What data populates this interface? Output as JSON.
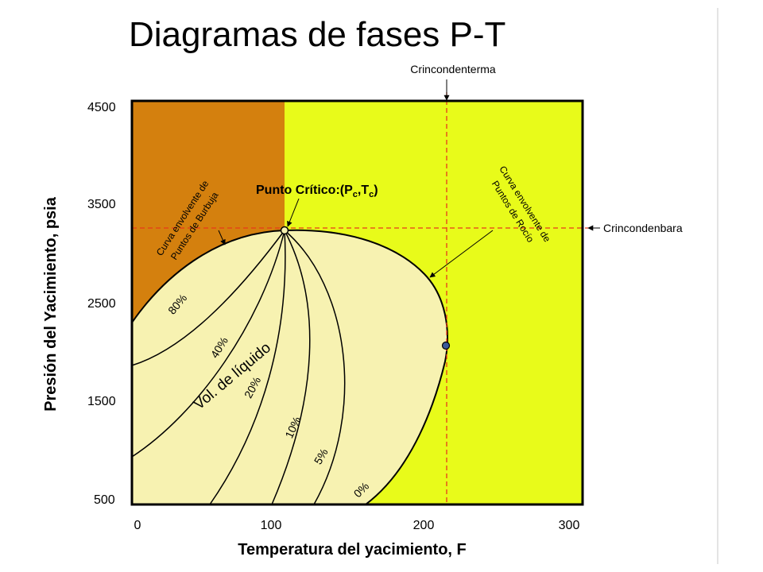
{
  "title": "Diagramas de fases P-T",
  "colors": {
    "gas_region": "#e8fb1a",
    "liquid_region": "#d4800e",
    "two_phase_region": "#f7f2b1",
    "guide_lines": "#e83a1a",
    "outline": "#000000"
  },
  "axes": {
    "xlabel": "Temperatura del yacimiento, F",
    "ylabel": "Presión del Yacimiento, psia",
    "x_ticks": [
      "0",
      "100",
      "200",
      "300"
    ],
    "y_ticks": [
      "4500",
      "3500",
      "2500",
      "1500",
      "500"
    ]
  },
  "labels": {
    "cricondentherm": "Crincondenterma",
    "cricondenbar": "Crincondenbara",
    "bubble_curve_line1": "Curva envolvente de",
    "bubble_curve_line2": "Puntos de Burbuja",
    "dew_curve_line1": "Curva envolvente de",
    "dew_curve_line2": "Puntos de Rocío",
    "critical_point_prefix": "Punto Crítico:(P",
    "critical_sub_c1": "c",
    "critical_point_mid": ",T",
    "critical_sub_c2": "c",
    "critical_point_suffix": ")",
    "liquid_volume": "Vol. de líquido"
  },
  "quality_lines": [
    "80%",
    "40%",
    "20%",
    "10%",
    "5%",
    "0%"
  ],
  "chart_data": {
    "type": "diagram",
    "x_range": [
      0,
      300
    ],
    "y_range": [
      500,
      4500
    ],
    "critical_point": {
      "temperature": 105,
      "pressure": 3240
    },
    "cricondentherm": {
      "temperature": 214,
      "pressure": 2050
    },
    "cricondenbar_pressure": 3240,
    "quality_line_percentages": [
      80,
      40,
      20,
      10,
      5,
      0
    ]
  }
}
